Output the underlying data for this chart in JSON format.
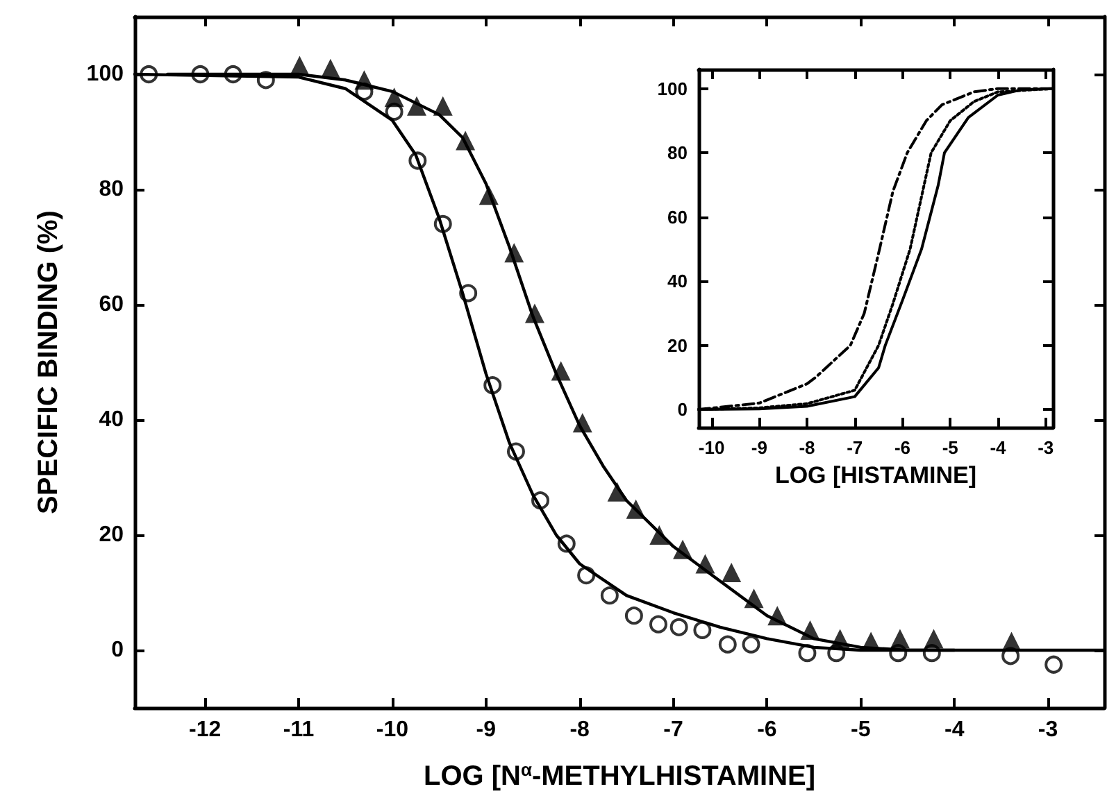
{
  "chart_data": [
    {
      "type": "scatter",
      "xlabel": "LOG [N$^{α}$-METHYLHISTAMINE]",
      "ylabel": "SPECIFIC BINDING (%)",
      "xlim": [
        -12.75,
        -2.4
      ],
      "xticks": [
        -12,
        -11,
        -10,
        -9,
        -8,
        -7,
        -6,
        -5,
        -4,
        -3
      ],
      "ylim": [
        -10,
        110
      ],
      "yticks": [
        0,
        20,
        40,
        60,
        80,
        100
      ],
      "grid": false,
      "series": [
        {
          "marker": "circle",
          "color": "#000000",
          "x": [
            -10.3,
            -9.98,
            -9.73,
            -9.46,
            -9.19,
            -8.93,
            -8.68,
            -8.42,
            -8.14,
            -7.93,
            -7.68,
            -7.42,
            -7.16,
            -6.94,
            -6.69,
            -6.42,
            -6.17,
            -5.57,
            -5.26,
            -4.6,
            -4.24,
            -3.4
          ],
          "values": [
            97,
            93.5,
            85,
            74,
            62,
            46,
            34.5,
            26,
            18.5,
            13,
            9.5,
            6,
            4.5,
            4,
            3.5,
            1,
            1,
            -0.5,
            -0.5,
            -0.5,
            -0.5,
            -1
          ]
        },
        {
          "marker": "triangle",
          "color": "#000000",
          "x": [
            -10.99,
            -10.66,
            -10.3,
            -9.98,
            -9.74,
            -9.46,
            -9.22,
            -8.97,
            -8.7,
            -8.48,
            -8.2,
            -7.97,
            -7.6,
            -7.4,
            -7.15,
            -6.9,
            -6.66,
            -6.38,
            -6.14,
            -5.89,
            -5.54,
            -5.22,
            -4.89,
            -4.58,
            -4.22,
            -3.39
          ],
          "values": [
            101.5,
            101,
            99,
            96,
            94.5,
            94.5,
            88.5,
            79,
            69,
            58.5,
            48.5,
            39.5,
            27.5,
            24.5,
            20,
            17.5,
            15,
            13.5,
            9,
            6,
            3.5,
            2,
            1.5,
            2,
            2,
            1.5
          ]
        },
        {
          "marker": "circle",
          "color": "#000000",
          "x": [
            -12.6,
            -12.05,
            -11.7,
            -11.35,
            -2.94
          ],
          "values": [
            100,
            100,
            100,
            99,
            -2.5
          ]
        },
        {
          "type": "line",
          "marker": "none",
          "line_style": "solid",
          "color": "#000000",
          "x": [
            -12.75,
            -11,
            -10.5,
            -10,
            -9.75,
            -9.5,
            -9.25,
            -9,
            -8.75,
            -8.5,
            -8.25,
            -8,
            -7.5,
            -7,
            -6.5,
            -6,
            -5.5,
            -5,
            -4
          ],
          "values": [
            100,
            99.5,
            97.5,
            92,
            86,
            75,
            62,
            48,
            36,
            27,
            20,
            15,
            9.5,
            6.5,
            4,
            2,
            0.5,
            0,
            0
          ]
        },
        {
          "type": "line",
          "marker": "none",
          "line_style": "solid",
          "color": "#000000",
          "x": [
            -12.4,
            -11,
            -10.5,
            -10,
            -9.5,
            -9.25,
            -9,
            -8.75,
            -8.5,
            -8.25,
            -8,
            -7.75,
            -7.5,
            -7,
            -6.5,
            -6,
            -5.5,
            -5,
            -4.5,
            -2.4
          ],
          "values": [
            100,
            100,
            99,
            97,
            93,
            89,
            81,
            70,
            58,
            48,
            39,
            32,
            26,
            18,
            12,
            6,
            2,
            0.5,
            0,
            0
          ]
        }
      ]
    },
    {
      "type": "line",
      "xlabel": "LOG [HISTAMINE]",
      "xlim": [
        -10.27,
        -2.85
      ],
      "xticks": [
        -10,
        -9,
        -8,
        -7,
        -6,
        -5,
        -4,
        -3
      ],
      "ylim": [
        -5.6,
        106
      ],
      "yticks": [
        0,
        20,
        40,
        60,
        80,
        100
      ],
      "grid": false,
      "series": [
        {
          "marker": "none",
          "line_style": "solid",
          "color": "#000000",
          "x": [
            -10.27,
            -9,
            -8,
            -7,
            -6.5,
            -6.36,
            -6,
            -5.6,
            -5.25,
            -5.12,
            -4.62,
            -4,
            -3.5,
            -2.85
          ],
          "values": [
            0,
            0.2,
            1,
            4,
            13,
            20,
            34,
            50,
            70,
            80,
            91,
            98,
            99.7,
            100
          ]
        },
        {
          "marker": "none",
          "line_style": "dotted",
          "color": "#000000",
          "x": [
            -10.27,
            -9,
            -8,
            -7,
            -6.5,
            -6.2,
            -5.84,
            -5.4,
            -5,
            -4.5,
            -4,
            -2.85
          ],
          "values": [
            0,
            0.5,
            1.8,
            6,
            20,
            33,
            50,
            80,
            90,
            96,
            99,
            100
          ]
        },
        {
          "marker": "none",
          "line_style": "dashed",
          "color": "#000000",
          "x": [
            -10.27,
            -9,
            -8,
            -7.82,
            -7.09,
            -6.8,
            -6.48,
            -6.2,
            -5.9,
            -5.5,
            -5.17,
            -4.5,
            -4,
            -2.85
          ],
          "values": [
            0,
            2,
            8,
            10,
            20,
            30,
            50,
            68,
            80,
            90,
            95,
            99,
            100,
            100
          ]
        }
      ]
    }
  ]
}
